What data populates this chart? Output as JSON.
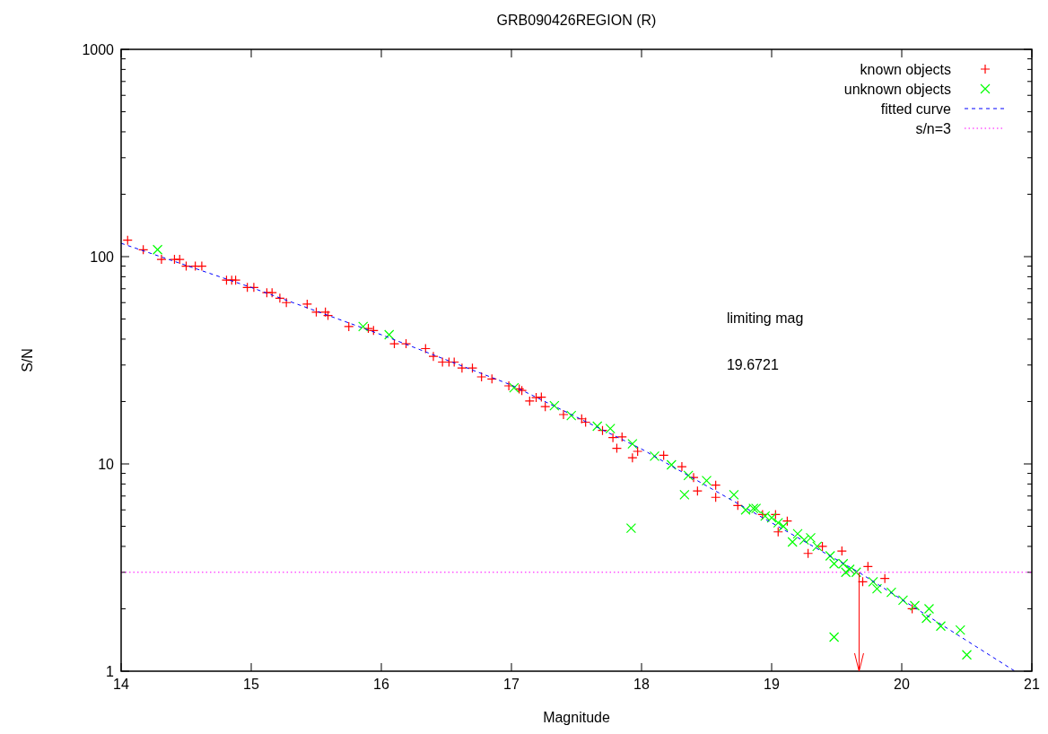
{
  "chart_data": {
    "type": "scatter",
    "title": "GRB090426REGION (R)",
    "xlabel": "Magnitude",
    "ylabel": "S/N",
    "log": "y",
    "xlim": [
      14,
      21
    ],
    "ylim": [
      1,
      1000
    ],
    "xticks": [
      14,
      15,
      16,
      17,
      18,
      19,
      20,
      21
    ],
    "yticks": [
      1,
      {
        "value": 2,
        "label": null
      },
      {
        "value": 3,
        "label": null
      },
      {
        "value": 4,
        "label": null
      },
      {
        "value": 5,
        "label": null
      },
      {
        "value": 6,
        "label": null
      },
      {
        "value": 7,
        "label": null
      },
      {
        "value": 8,
        "label": null
      },
      {
        "value": 9,
        "label": null
      },
      10,
      {
        "value": 20,
        "label": null
      },
      {
        "value": 30,
        "label": null
      },
      {
        "value": 40,
        "label": null
      },
      {
        "value": 50,
        "label": null
      },
      {
        "value": 60,
        "label": null
      },
      {
        "value": 70,
        "label": null
      },
      {
        "value": 80,
        "label": null
      },
      {
        "value": 90,
        "label": null
      },
      100,
      {
        "value": 200,
        "label": null
      },
      {
        "value": 300,
        "label": null
      },
      {
        "value": 400,
        "label": null
      },
      {
        "value": 500,
        "label": null
      },
      {
        "value": 600,
        "label": null
      },
      {
        "value": 700,
        "label": null
      },
      {
        "value": 800,
        "label": null
      },
      {
        "value": 900,
        "label": null
      },
      1000
    ],
    "grid": false,
    "legend": "top right",
    "annotations": [
      "limiting mag",
      "19.6721"
    ],
    "ref_lines": [
      {
        "axis": "x",
        "value": 19.6721,
        "color": "#ff0000"
      }
    ],
    "series": [
      {
        "name": "known objects",
        "marker": "cross",
        "color": "#ff0000",
        "x": [
          14.05,
          14.17,
          14.31,
          14.41,
          14.45,
          14.5,
          14.57,
          14.62,
          14.81,
          14.85,
          14.88,
          14.97,
          15.02,
          15.12,
          15.16,
          15.22,
          15.27,
          15.43,
          15.5,
          15.57,
          15.59,
          15.75,
          15.9,
          15.94,
          16.1,
          16.19,
          16.34,
          16.4,
          16.47,
          16.52,
          16.56,
          16.62,
          16.7,
          16.77,
          16.85,
          16.98,
          17.06,
          17.08,
          17.14,
          17.19,
          17.23,
          17.26,
          17.4,
          17.54,
          17.57,
          17.7,
          17.78,
          17.81,
          17.85,
          17.93,
          17.97,
          18.17,
          18.31,
          18.4,
          18.43,
          18.57,
          18.57,
          18.74,
          18.93,
          19.03,
          19.05,
          19.12,
          19.28,
          19.39,
          19.54,
          19.7,
          19.74,
          19.87,
          20.08
        ],
        "values": [
          120,
          108,
          97,
          97,
          97,
          90,
          90,
          90,
          77,
          77,
          77,
          71,
          71,
          67,
          67,
          63,
          60,
          59,
          54,
          54,
          52,
          46,
          45,
          44,
          38,
          38,
          36,
          33,
          31,
          31,
          31,
          29,
          29,
          26.3,
          25.7,
          23.8,
          23,
          22.6,
          20.1,
          20.9,
          21,
          18.9,
          17.3,
          16.5,
          15.9,
          14.5,
          13.4,
          11.9,
          13.5,
          10.7,
          11.5,
          11,
          9.7,
          8.6,
          7.4,
          7.9,
          6.9,
          6.3,
          5.7,
          5.7,
          4.7,
          5.3,
          3.7,
          4,
          3.8,
          2.7,
          3.2,
          2.8,
          2
        ]
      },
      {
        "name": "unknown objects",
        "marker": "x",
        "color": "#00ff00",
        "x": [
          14.28,
          15.86,
          16.06,
          17.02,
          17.33,
          17.46,
          17.66,
          17.76,
          17.92,
          17.93,
          18.1,
          18.23,
          18.33,
          18.36,
          18.5,
          18.71,
          18.8,
          18.86,
          18.88,
          18.95,
          19,
          19.05,
          19.09,
          19.16,
          19.2,
          19.25,
          19.3,
          19.35,
          19.45,
          19.48,
          19.48,
          19.55,
          19.57,
          19.6,
          19.65,
          19.78,
          19.81,
          19.92,
          20.01,
          20.1,
          20.19,
          20.21,
          20.3,
          20.45,
          20.5
        ],
        "values": [
          108,
          46,
          42,
          23.3,
          19.1,
          17.1,
          15.2,
          14.8,
          4.9,
          12.5,
          10.9,
          9.9,
          7.1,
          8.8,
          8.3,
          7.1,
          6,
          6.1,
          6.1,
          5.6,
          5.5,
          5.2,
          5,
          4.2,
          4.6,
          4.3,
          4.4,
          4,
          3.6,
          3.3,
          1.46,
          3.3,
          3,
          3.1,
          3,
          2.7,
          2.5,
          2.4,
          2.2,
          2.07,
          1.8,
          2,
          1.65,
          1.58,
          1.2
        ]
      },
      {
        "name": "fitted curve",
        "type": "line",
        "line_style": "dashed",
        "marker": "none",
        "color": "#0000ff",
        "x": [
          14,
          15,
          16,
          17,
          18,
          19,
          19.67,
          20.87
        ],
        "values": [
          116,
          71,
          42,
          24,
          11.8,
          5.2,
          3,
          1
        ]
      },
      {
        "name": "s/n=3",
        "type": "line",
        "line_style": "dotted",
        "marker": "none",
        "color": "#ff00ff",
        "x": [
          14,
          21
        ],
        "values": [
          3,
          3
        ]
      }
    ]
  }
}
